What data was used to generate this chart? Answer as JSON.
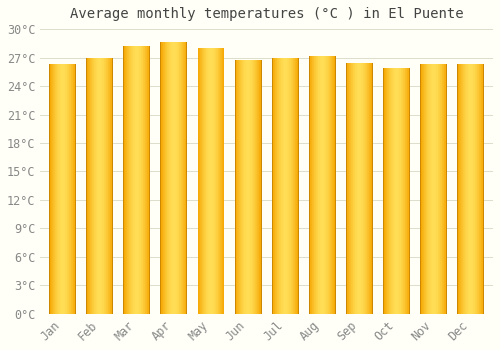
{
  "title": "Average monthly temperatures (°C ) in El Puente",
  "months": [
    "Jan",
    "Feb",
    "Mar",
    "Apr",
    "May",
    "Jun",
    "Jul",
    "Aug",
    "Sep",
    "Oct",
    "Nov",
    "Dec"
  ],
  "values": [
    26.3,
    27.0,
    28.2,
    28.6,
    28.0,
    26.7,
    27.0,
    27.2,
    26.4,
    25.9,
    26.3,
    26.3
  ],
  "ylim": [
    0,
    30
  ],
  "yticks": [
    0,
    3,
    6,
    9,
    12,
    15,
    18,
    21,
    24,
    27,
    30
  ],
  "bar_edge_color": "#F5A500",
  "bar_center_color": "#FFD84D",
  "bar_shadow_color": "#C07800",
  "background_color": "#FFFFF8",
  "grid_color": "#DDDDCC",
  "title_fontsize": 10,
  "tick_fontsize": 8.5,
  "font_family": "monospace",
  "bar_width": 0.72
}
